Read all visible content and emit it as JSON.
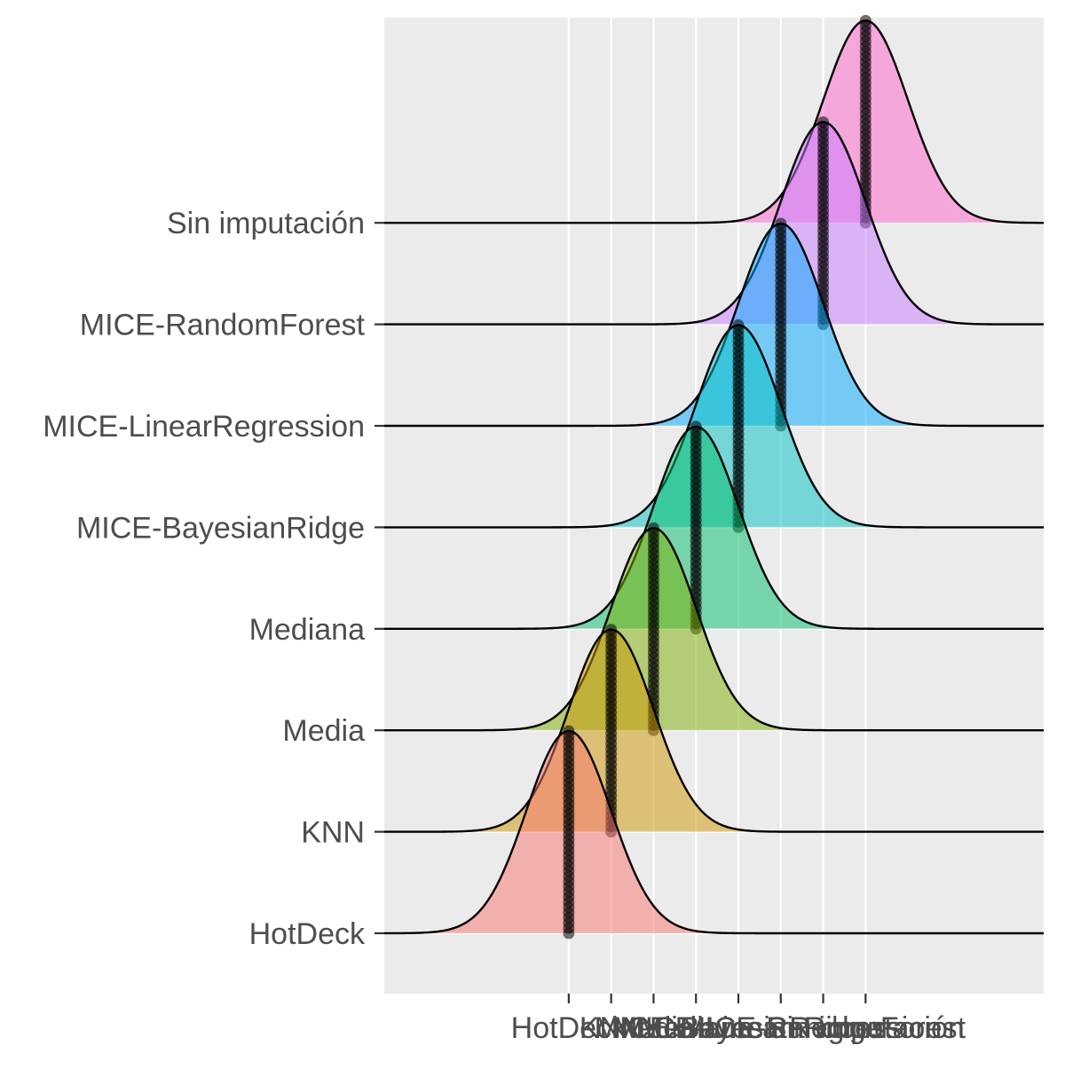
{
  "chart_data": {
    "type": "ridgeline",
    "title": "",
    "xlabel": "",
    "ylabel": "",
    "grid": true,
    "legend": "none",
    "categories": [
      "HotDeck",
      "KNN",
      "Media",
      "Mediana",
      "MICE-BayesianRidge",
      "MICE-LinearRegression",
      "MICE-RandomForest",
      "Sin imputación"
    ],
    "x_tick_labels": [
      "HotDeck",
      "KNN",
      "Media",
      "Mediana",
      "MICE-BayesianRidge",
      "MICE-LinearRegression",
      "MICE-RandomForest",
      "Sin imputación"
    ],
    "x_tick_positions": [
      1,
      2,
      3,
      4,
      5,
      6,
      7,
      8
    ],
    "xlim": [
      -3.35,
      12.2
    ],
    "series": [
      {
        "name": "HotDeck",
        "center": 1,
        "sd": 1.0,
        "color": "#F8766D"
      },
      {
        "name": "KNN",
        "center": 2,
        "sd": 1.0,
        "color": "#CD9600"
      },
      {
        "name": "Media",
        "center": 3,
        "sd": 1.0,
        "color": "#7CAE00"
      },
      {
        "name": "Mediana",
        "center": 4,
        "sd": 1.0,
        "color": "#00BE67"
      },
      {
        "name": "MICE-BayesianRidge",
        "center": 5,
        "sd": 1.0,
        "color": "#00BFC4"
      },
      {
        "name": "MICE-LinearRegression",
        "center": 6,
        "sd": 1.0,
        "color": "#00A9FF"
      },
      {
        "name": "MICE-RandomForest",
        "center": 7,
        "sd": 1.0,
        "color": "#C77CFF"
      },
      {
        "name": "Sin imputación",
        "center": 8,
        "sd": 1.0,
        "color": "#FF61CC"
      }
    ]
  }
}
